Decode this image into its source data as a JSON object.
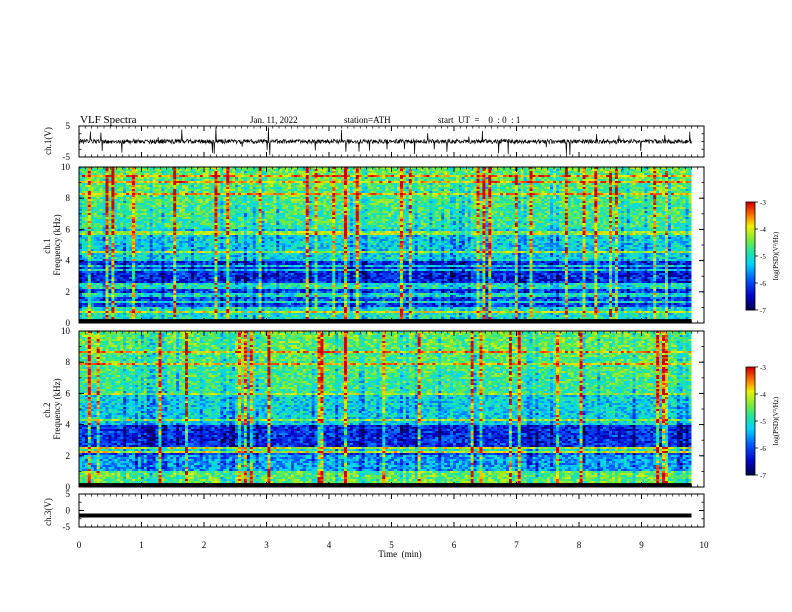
{
  "header": {
    "title": "VLF  Spectra",
    "date": "Jan. 11, 2022",
    "station": "station=ATH",
    "start": "start  UT  =    0  : 0  : 1"
  },
  "chart_data": [
    {
      "type": "line",
      "ylabel": "ch.1(V)",
      "ylim": [
        -5,
        5
      ],
      "yticks": [
        "5",
        "-5"
      ],
      "x_extent_min": [
        0,
        9.8
      ],
      "series": [
        {
          "signal": "noisy trace around ~0 V"
        }
      ]
    },
    {
      "type": "heatmap",
      "ylabel": "ch.1\nFrequency (kHz)",
      "ylabel_lines": [
        "ch.1",
        "Frequency (kHz)"
      ],
      "ylim": [
        0,
        10
      ],
      "yticks": [
        "0",
        "2",
        "4",
        "6",
        "8",
        "10"
      ],
      "x_extent_min": [
        0,
        9.8
      ],
      "colorbar": {
        "label": "log(PSD)(V²/Hz)",
        "range": [
          -7,
          -3
        ],
        "ticks": [
          "-3",
          "-4",
          "-5",
          "-6",
          "-7"
        ]
      }
    },
    {
      "type": "heatmap",
      "ylabel": "ch.2\nFrequency (kHz)",
      "ylabel_lines": [
        "ch.2",
        "Frequency (kHz)"
      ],
      "ylim": [
        0,
        10
      ],
      "yticks": [
        "0",
        "2",
        "4",
        "6",
        "8",
        "10"
      ],
      "x_extent_min": [
        0,
        9.8
      ],
      "colorbar": {
        "label": "log(PSD)(V²/Hz)",
        "range": [
          -7,
          -3
        ],
        "ticks": [
          "-3",
          "-4",
          "-5",
          "-6",
          "-7"
        ]
      }
    },
    {
      "type": "line",
      "ylabel": "ch.3(V)",
      "ylim": [
        -5,
        5
      ],
      "yticks": [
        "5",
        "0",
        "-5"
      ],
      "x_extent_min": [
        0,
        9.8
      ],
      "series": [
        {
          "signal": "flat thick trace at ~-1.5 V"
        }
      ]
    }
  ],
  "xaxis": {
    "label": "Time  (min)",
    "range": [
      0,
      10
    ],
    "ticks": [
      "0",
      "1",
      "2",
      "3",
      "4",
      "5",
      "6",
      "7",
      "8",
      "9",
      "10"
    ]
  }
}
